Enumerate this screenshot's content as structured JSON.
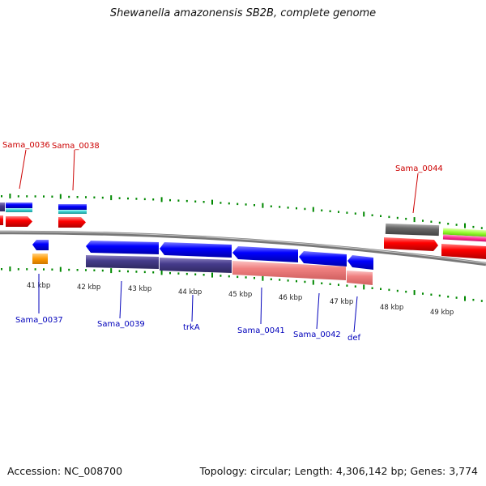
{
  "title": "Shewanella amazonensis SB2B, complete genome",
  "footer": {
    "accession": "Accession: NC_008700",
    "stats": "Topology: circular; Length: 4,306,142 bp; Genes: 3,774"
  },
  "scale_labels": [
    "41 kbp",
    "42 kbp",
    "43 kbp",
    "44 kbp",
    "45 kbp",
    "46 kbp",
    "47 kbp",
    "48 kbp",
    "49 kbp"
  ],
  "gene_labels": {
    "sama_0036": "Sama_0036",
    "sama_0038": "Sama_0038",
    "sama_0044": "Sama_0044",
    "sama_0037": "Sama_0037",
    "sama_0039": "Sama_0039",
    "trka": "trkA",
    "sama_0041": "Sama_0041",
    "sama_0042": "Sama_0042",
    "def": "def"
  },
  "colors": {
    "forward_gene": "#ff0000",
    "reverse_gene": "#0000ff",
    "protein_dark": "#463c8c",
    "protein_light": "#f08080",
    "backbone": "#888888",
    "tick": "#008800",
    "cyan": "#33cccc",
    "orange": "#ff9900",
    "grey_gene": "#666666",
    "lime": "#99ff33",
    "magenta": "#ff3399",
    "label_forward": "#cc0000",
    "label_reverse": "#0000bb"
  }
}
